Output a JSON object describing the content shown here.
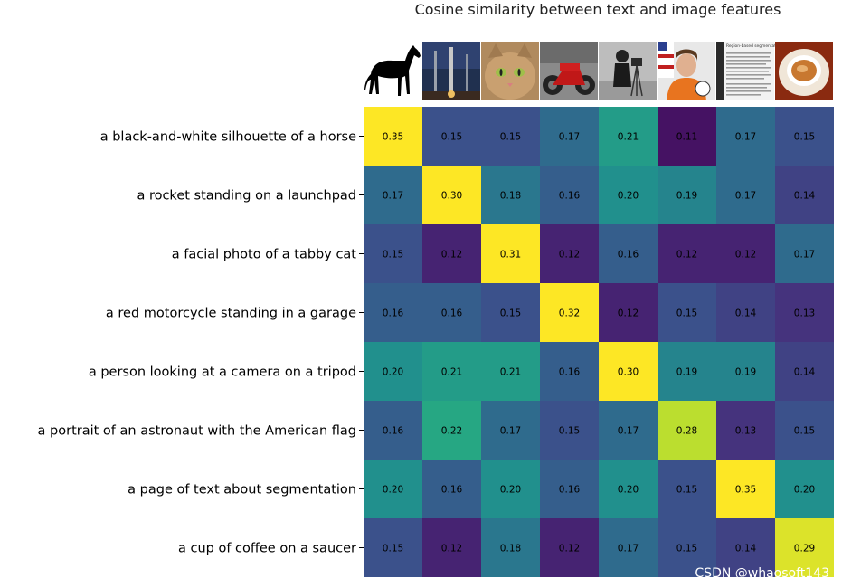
{
  "chart_data": {
    "type": "heatmap",
    "title": "Cosine similarity between text and image features",
    "rows": [
      "a black-and-white silhouette of a horse",
      "a rocket standing on a launchpad",
      "a facial photo of a tabby cat",
      "a red motorcycle standing in a garage",
      "a person looking at a camera on a tripod",
      "a portrait of an astronaut with the American flag",
      "a page of text about segmentation",
      "a cup of coffee on a saucer"
    ],
    "columns_images": [
      "horse",
      "rocket",
      "tabby-cat",
      "motorcycle",
      "camera-person",
      "astronaut",
      "segmentation-text-page",
      "coffee-cup"
    ],
    "thumbnail_caption": "Region-based segmentation",
    "values": [
      [
        0.35,
        0.15,
        0.15,
        0.17,
        0.21,
        0.11,
        0.17,
        0.15
      ],
      [
        0.17,
        0.3,
        0.18,
        0.16,
        0.2,
        0.19,
        0.17,
        0.14
      ],
      [
        0.15,
        0.12,
        0.31,
        0.12,
        0.16,
        0.12,
        0.12,
        0.17
      ],
      [
        0.16,
        0.16,
        0.15,
        0.32,
        0.12,
        0.15,
        0.14,
        0.13
      ],
      [
        0.2,
        0.21,
        0.21,
        0.16,
        0.3,
        0.19,
        0.19,
        0.14
      ],
      [
        0.16,
        0.22,
        0.17,
        0.15,
        0.17,
        0.28,
        0.13,
        0.15
      ],
      [
        0.2,
        0.16,
        0.2,
        0.16,
        0.2,
        0.15,
        0.35,
        0.2
      ],
      [
        0.15,
        0.12,
        0.18,
        0.12,
        0.17,
        0.15,
        0.14,
        0.29
      ]
    ],
    "colormap": "viridis",
    "vmin": 0.1,
    "vmax": 0.3,
    "grid": false
  },
  "watermark": "CSDN @whaosoft143"
}
